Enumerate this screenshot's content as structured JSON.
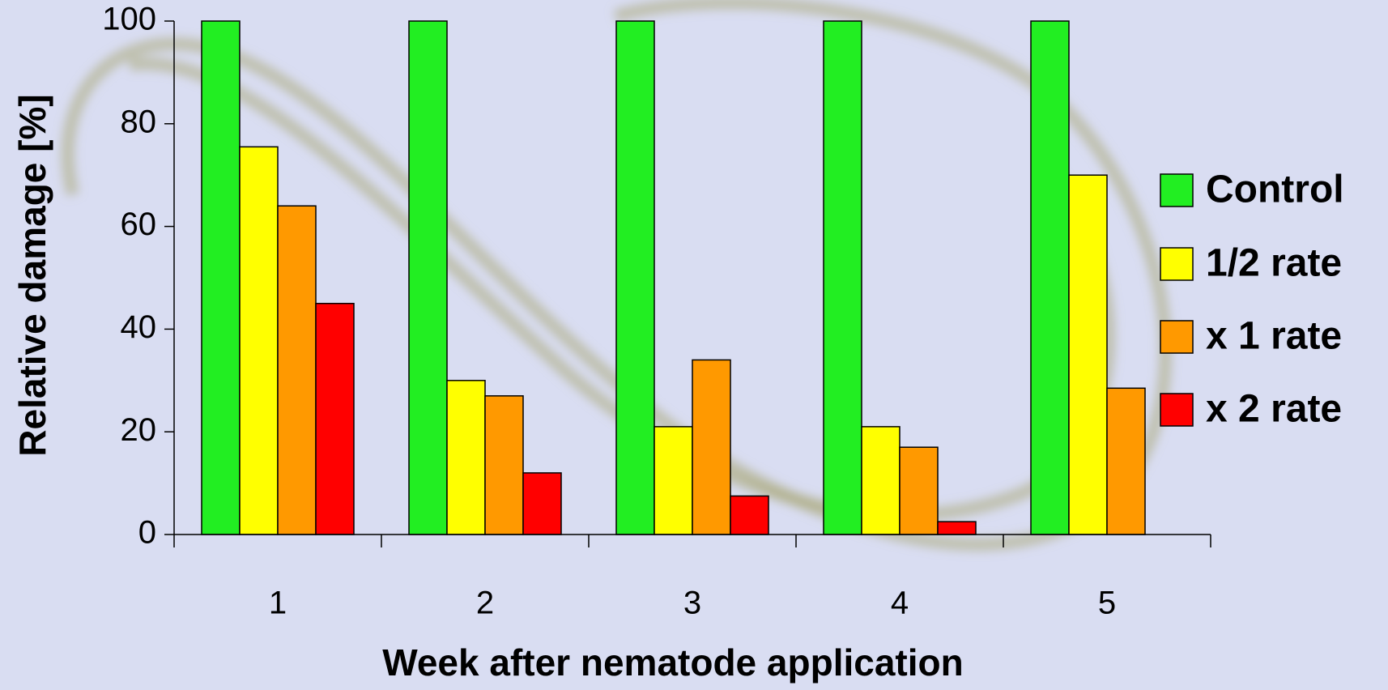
{
  "chart_data": {
    "type": "bar",
    "x_label": "Week after nematode application",
    "y_label": "Relative damage [%]",
    "categories": [
      "1",
      "2",
      "3",
      "4",
      "5"
    ],
    "series": [
      {
        "name": "Control",
        "color": "#22ee22",
        "values": [
          100,
          100,
          100,
          100,
          100
        ]
      },
      {
        "name": "1/2 rate",
        "color": "#ffff00",
        "values": [
          75.5,
          30,
          21,
          21,
          70
        ]
      },
      {
        "name": "x 1 rate",
        "color": "#ff9900",
        "values": [
          64,
          27,
          34,
          17,
          28.5
        ]
      },
      {
        "name": "x 2 rate",
        "color": "#ff0000",
        "values": [
          45,
          12,
          7.5,
          2.5,
          null
        ]
      }
    ],
    "ylim": [
      0,
      100
    ],
    "yticks": [
      0,
      20,
      40,
      60,
      80,
      100
    ],
    "grid": false,
    "legend": "right"
  }
}
